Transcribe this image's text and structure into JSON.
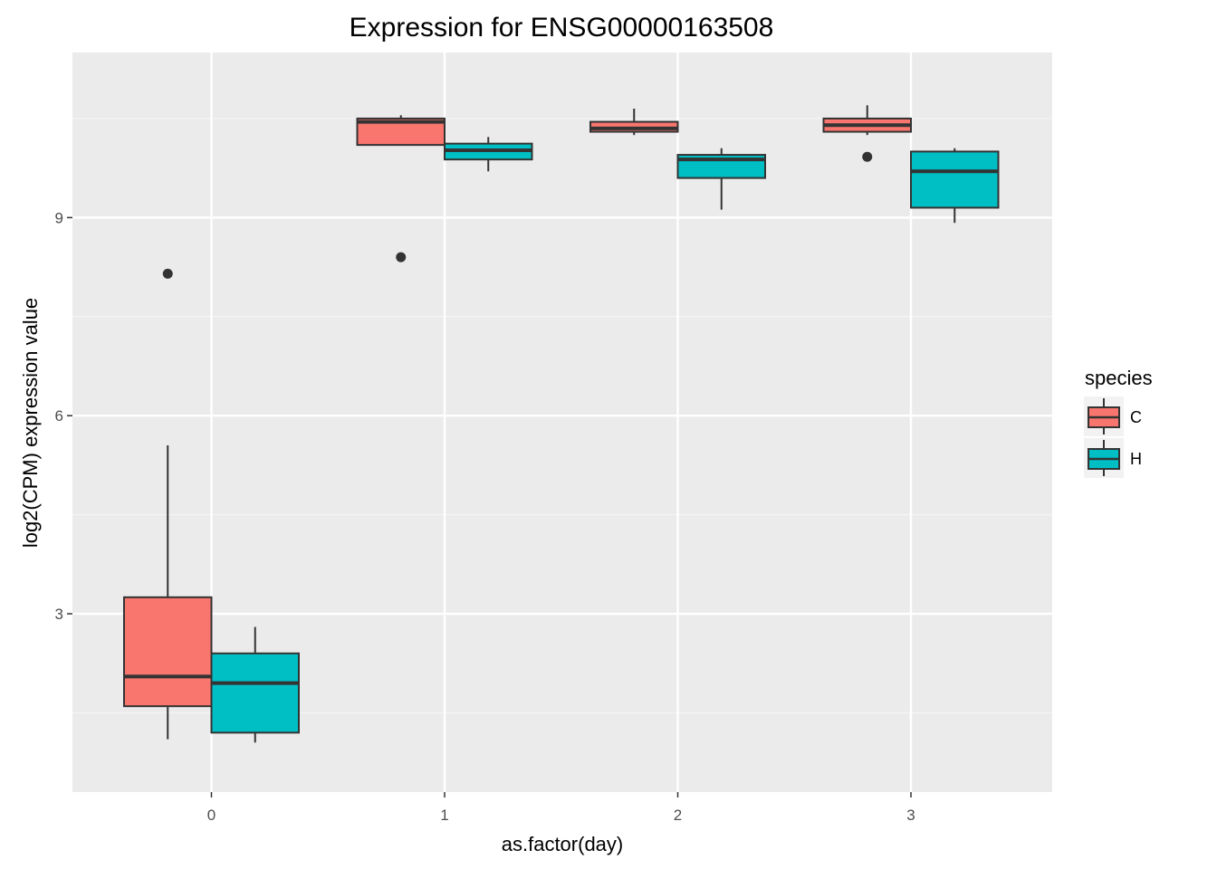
{
  "chart_data": {
    "type": "boxplot",
    "title": "Expression for ENSG00000163508",
    "xlabel": "as.factor(day)",
    "ylabel": "log2(CPM) expression value",
    "categories": [
      "0",
      "1",
      "2",
      "3"
    ],
    "ylim": [
      0.3,
      11.5
    ],
    "yticks": [
      3,
      6,
      9
    ],
    "grid": true,
    "legend": {
      "title": "species",
      "placement": "right"
    },
    "series": [
      {
        "name": "C",
        "color": "#f8766d",
        "boxes": [
          {
            "category": "0",
            "whisker_low": 1.1,
            "q1": 1.6,
            "median": 2.05,
            "q3": 3.25,
            "whisker_high": 5.55,
            "outliers": [
              8.15
            ]
          },
          {
            "category": "1",
            "whisker_low": 10.1,
            "q1": 10.1,
            "median": 10.45,
            "q3": 10.5,
            "whisker_high": 10.55,
            "outliers": [
              8.4
            ]
          },
          {
            "category": "2",
            "whisker_low": 10.25,
            "q1": 10.3,
            "median": 10.35,
            "q3": 10.45,
            "whisker_high": 10.65,
            "outliers": []
          },
          {
            "category": "3",
            "whisker_low": 10.25,
            "q1": 10.3,
            "median": 10.4,
            "q3": 10.5,
            "whisker_high": 10.7,
            "outliers": [
              9.92
            ]
          }
        ]
      },
      {
        "name": "H",
        "color": "#00bfc4",
        "boxes": [
          {
            "category": "0",
            "whisker_low": 1.05,
            "q1": 1.2,
            "median": 1.95,
            "q3": 2.4,
            "whisker_high": 2.8,
            "outliers": []
          },
          {
            "category": "1",
            "whisker_low": 9.7,
            "q1": 9.88,
            "median": 10.02,
            "q3": 10.12,
            "whisker_high": 10.22,
            "outliers": []
          },
          {
            "category": "2",
            "whisker_low": 9.12,
            "q1": 9.6,
            "median": 9.88,
            "q3": 9.95,
            "whisker_high": 10.05,
            "outliers": []
          },
          {
            "category": "3",
            "whisker_low": 8.92,
            "q1": 9.15,
            "median": 9.7,
            "q3": 10.0,
            "whisker_high": 10.05,
            "outliers": []
          }
        ]
      }
    ]
  }
}
